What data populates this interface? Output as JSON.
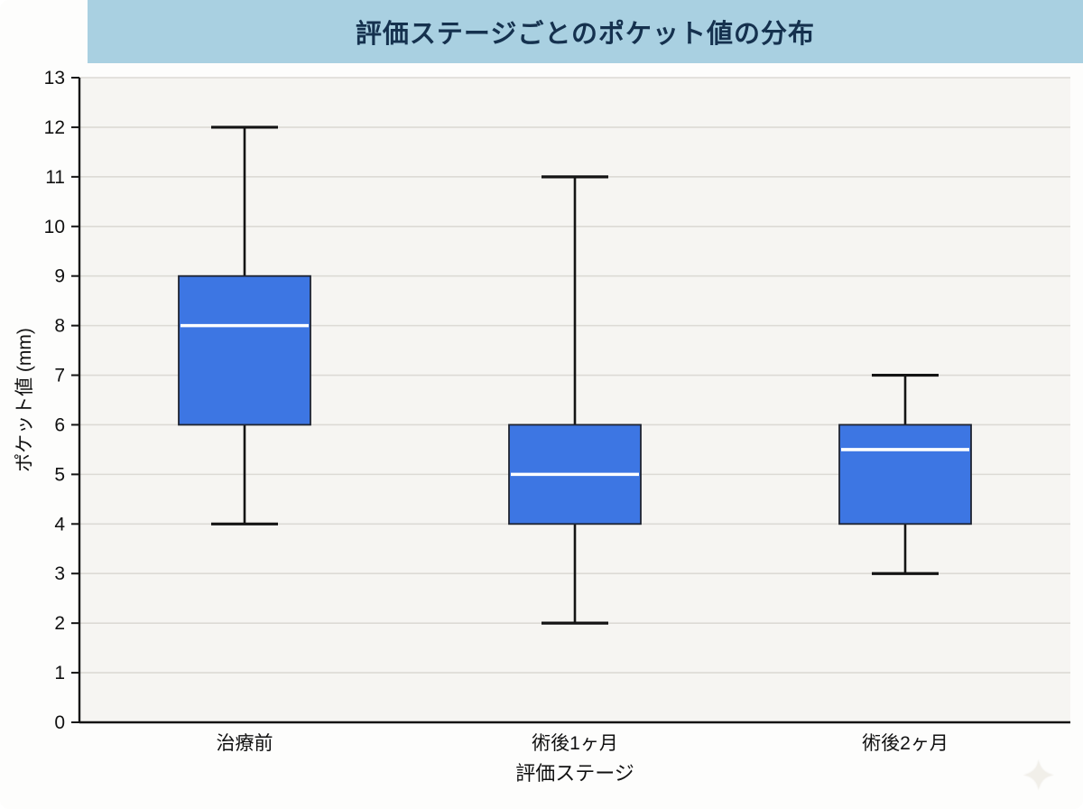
{
  "chart_data": {
    "type": "boxplot",
    "title": "評価ステージごとのポケット値の分布",
    "xlabel": "評価ステージ",
    "ylabel": "ポケット値 (mm)",
    "ylim": [
      0,
      13
    ],
    "ytick_step": 1,
    "grid": "horizontal",
    "legend": "none",
    "categories": [
      "治療前",
      "術後1ヶ月",
      "術後2ヶ月"
    ],
    "boxes": [
      {
        "category": "治療前",
        "whisker_low": 4,
        "q1": 6,
        "median": 8,
        "q3": 9,
        "whisker_high": 12
      },
      {
        "category": "術後1ヶ月",
        "whisker_low": 2,
        "q1": 4,
        "median": 5,
        "q3": 6,
        "whisker_high": 11
      },
      {
        "category": "術後2ヶ月",
        "whisker_low": 3,
        "q1": 4,
        "median": 5.5,
        "q3": 6,
        "whisker_high": 7
      }
    ],
    "colors": {
      "box_fill": "#3d76e3",
      "box_edge": "#1f2430",
      "median": "#ffffff",
      "whisker": "#141414",
      "axis": "#141414",
      "grid_line": "#dcdad5",
      "plot_bg": "#f6f5f2",
      "title_bar_bg": "#a9d0e1",
      "title_text": "#15314e",
      "tick_text": "#111111"
    }
  },
  "decorations": {
    "sparkle_icon": "✦"
  }
}
